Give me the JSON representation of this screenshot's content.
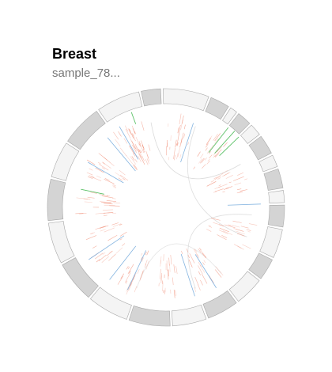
{
  "card": {
    "title": "Breast",
    "subtitle": "sample_78..."
  },
  "colors": {
    "segment_light": "#f4f4f4",
    "segment_dark": "#d4d4d4",
    "segment_stroke": "#a8a8a8",
    "snv_red": "#f08a72",
    "snv_blue": "#5b9bd5",
    "snv_green": "#3cb54a",
    "link_gray": "#d6d6d6"
  },
  "ideogram_segments": [
    {
      "span": 20,
      "shade": "light"
    },
    {
      "span": 9,
      "shade": "dark"
    },
    {
      "span": 4,
      "shade": "light"
    },
    {
      "span": 7,
      "shade": "dark"
    },
    {
      "span": 6,
      "shade": "light"
    },
    {
      "span": 9,
      "shade": "dark"
    },
    {
      "span": 6,
      "shade": "light"
    },
    {
      "span": 9,
      "shade": "dark"
    },
    {
      "span": 6,
      "shade": "light"
    },
    {
      "span": 10,
      "shade": "dark"
    },
    {
      "span": 13,
      "shade": "light"
    },
    {
      "span": 10,
      "shade": "dark"
    },
    {
      "span": 13,
      "shade": "light"
    },
    {
      "span": 14,
      "shade": "dark"
    },
    {
      "span": 15,
      "shade": "light"
    },
    {
      "span": 18,
      "shade": "dark"
    },
    {
      "span": 18,
      "shade": "light"
    },
    {
      "span": 18,
      "shade": "dark"
    },
    {
      "span": 18,
      "shade": "light"
    },
    {
      "span": 18,
      "shade": "dark"
    },
    {
      "span": 16,
      "shade": "light"
    },
    {
      "span": 18,
      "shade": "dark"
    },
    {
      "span": 19,
      "shade": "light"
    },
    {
      "span": 9,
      "shade": "dark"
    }
  ]
}
